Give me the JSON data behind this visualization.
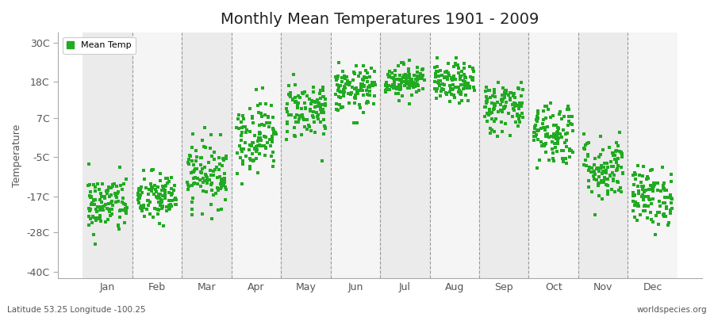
{
  "title": "Monthly Mean Temperatures 1901 - 2009",
  "ylabel": "Temperature",
  "yticks": [
    -40,
    -28,
    -17,
    -5,
    7,
    18,
    30
  ],
  "ytick_labels": [
    "-40C",
    "-28C",
    "-17C",
    "-5C",
    "7C",
    "18C",
    "30C"
  ],
  "ylim": [
    -42,
    33
  ],
  "months": [
    "Jan",
    "Feb",
    "Mar",
    "Apr",
    "May",
    "Jun",
    "Jul",
    "Aug",
    "Sep",
    "Oct",
    "Nov",
    "Dec"
  ],
  "dot_color": "#22aa22",
  "dot_size": 8,
  "background_color": "#ffffff",
  "plot_bg_color": "#ffffff",
  "band_color_1": "#ebebeb",
  "band_color_2": "#f5f5f5",
  "footer_left": "Latitude 53.25 Longitude -100.25",
  "footer_right": "worldspecies.org",
  "legend_label": "Mean Temp",
  "monthly_means": [
    -19.5,
    -17.5,
    -10.0,
    1.5,
    9.5,
    15.5,
    18.5,
    17.5,
    10.5,
    2.5,
    -8.5,
    -17.0
  ],
  "monthly_stds": [
    4.5,
    4.0,
    5.0,
    5.5,
    4.5,
    3.5,
    2.5,
    3.0,
    4.0,
    5.0,
    5.0,
    4.5
  ],
  "n_years": 109,
  "xlim_start": -0.5,
  "xlim_end": 12.5
}
